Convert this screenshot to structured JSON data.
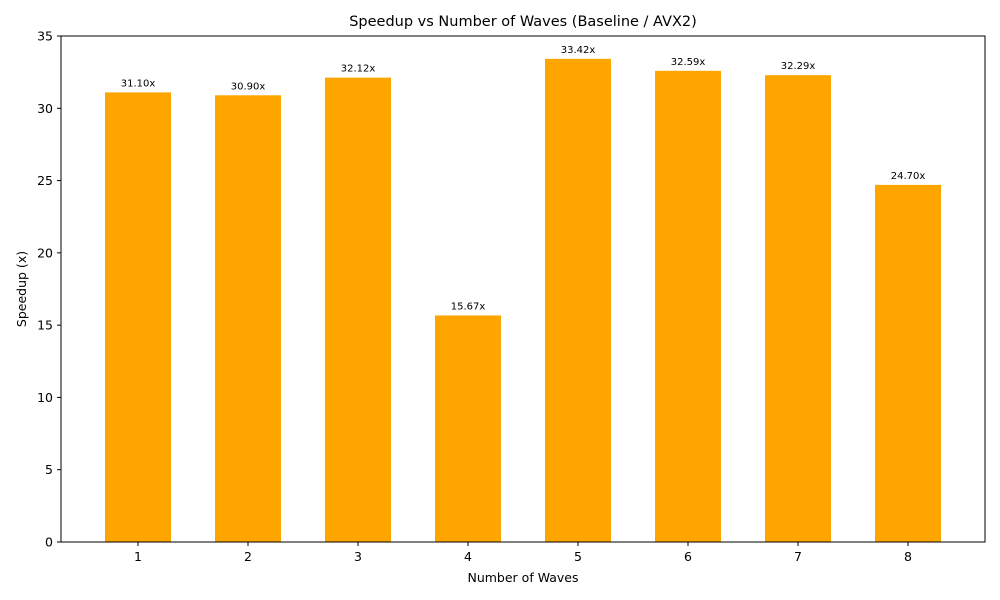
{
  "chart_data": {
    "type": "bar",
    "title": "Speedup vs Number of Waves (Baseline / AVX2)",
    "xlabel": "Number of Waves",
    "ylabel": "Speedup (x)",
    "categories": [
      "1",
      "2",
      "3",
      "4",
      "5",
      "6",
      "7",
      "8"
    ],
    "values": [
      31.1,
      30.9,
      32.12,
      15.67,
      33.42,
      32.59,
      32.29,
      24.7
    ],
    "data_labels": [
      "31.10x",
      "30.90x",
      "32.12x",
      "15.67x",
      "33.42x",
      "32.59x",
      "32.29x",
      "24.70x"
    ],
    "ylim": [
      0,
      35
    ],
    "yticks": [
      0,
      5,
      10,
      15,
      20,
      25,
      30,
      35
    ],
    "bar_color": "#FFA500",
    "grid": false,
    "legend": "none"
  }
}
